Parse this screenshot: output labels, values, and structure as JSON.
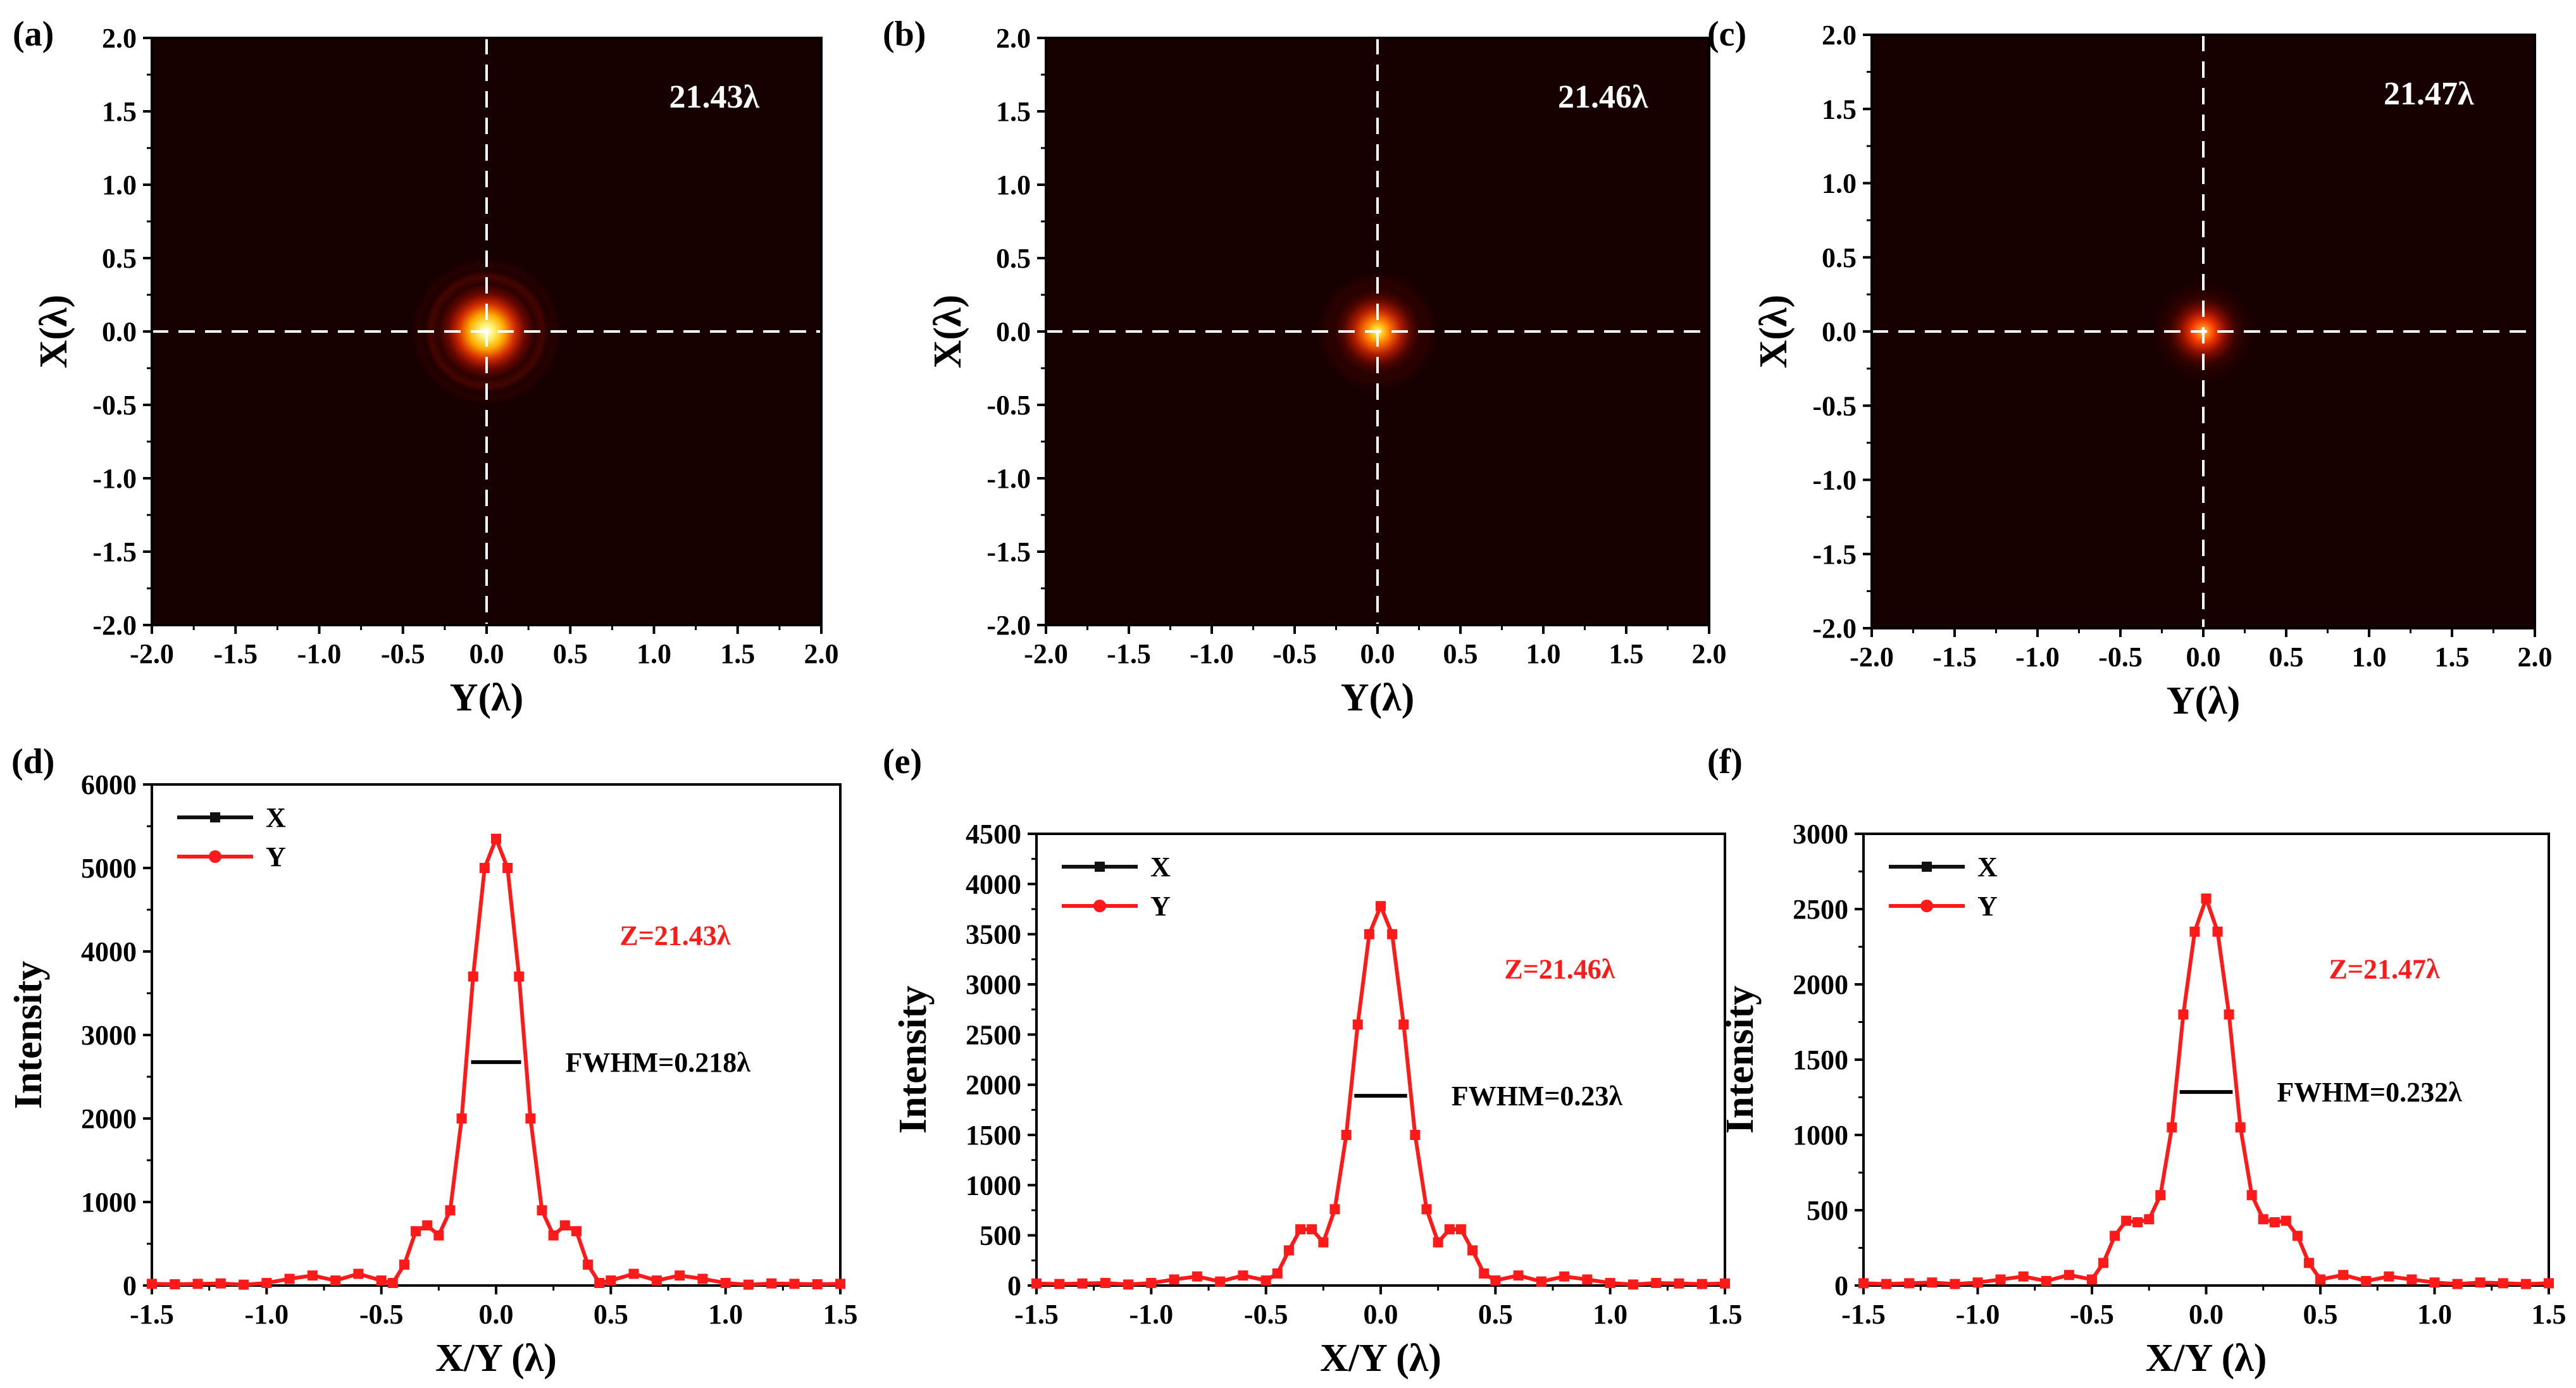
{
  "figure": {
    "heatmap_ticks": [
      "-2.0",
      "-1.5",
      "-1.0",
      "-0.5",
      "0.0",
      "0.5",
      "1.0",
      "1.5",
      "2.0"
    ],
    "profile_x_ticks": [
      "-1.5",
      "-1.0",
      "-0.5",
      "0.0",
      "0.5",
      "1.0",
      "1.5"
    ]
  },
  "chart_data": [
    {
      "panel": "(a)",
      "type": "heatmap",
      "xlabel": "Y(λ)",
      "ylabel": "X(λ)",
      "xlim": [
        -2.0,
        2.0
      ],
      "ylim": [
        -2.0,
        2.0
      ],
      "annotation": "21.43λ",
      "peak_brightness": 1.0,
      "spot_radius": 0.26,
      "crosshair": {
        "x": 0.0,
        "y": 0.0,
        "style": "dashed",
        "color": "#ffffff"
      },
      "colormap": "black-red-yellow-white"
    },
    {
      "panel": "(b)",
      "type": "heatmap",
      "xlabel": "Y(λ)",
      "ylabel": "X(λ)",
      "xlim": [
        -2.0,
        2.0
      ],
      "ylim": [
        -2.0,
        2.0
      ],
      "annotation": "21.46λ",
      "peak_brightness": 0.72,
      "spot_radius": 0.22,
      "crosshair": {
        "x": 0.0,
        "y": 0.0,
        "style": "dashed",
        "color": "#ffffff"
      },
      "colormap": "black-red-yellow-white"
    },
    {
      "panel": "(c)",
      "type": "heatmap",
      "xlabel": "Y(λ)",
      "ylabel": "X(λ)",
      "xlim": [
        -2.0,
        2.0
      ],
      "ylim": [
        -2.0,
        2.0
      ],
      "annotation": "21.47λ",
      "peak_brightness": 0.5,
      "spot_radius": 0.2,
      "crosshair": {
        "x": 0.0,
        "y": 0.0,
        "style": "dashed",
        "color": "#ffffff"
      },
      "colormap": "black-red-yellow-white"
    },
    {
      "panel": "(d)",
      "type": "line",
      "xlabel": "X/Y (λ)",
      "ylabel": "Intensity",
      "xlim": [
        -1.5,
        1.5
      ],
      "ylim": [
        0,
        6000
      ],
      "yticks": [
        0,
        1000,
        2000,
        3000,
        4000,
        5000,
        6000
      ],
      "legend": [
        "X",
        "Y"
      ],
      "legend_position": "top-left",
      "series_colors": {
        "X": "#111111",
        "Y": "#ff1a1a"
      },
      "z_label": "Z=21.43λ",
      "fwhm_label": "FWHM=0.218λ",
      "peak": 5350,
      "fwhm": 0.218,
      "x": [
        -1.5,
        -1.4,
        -1.3,
        -1.2,
        -1.1,
        -1.0,
        -0.9,
        -0.8,
        -0.7,
        -0.6,
        -0.5,
        -0.45,
        -0.4,
        -0.35,
        -0.3,
        -0.25,
        -0.2,
        -0.15,
        -0.1,
        -0.05,
        0.0,
        0.05,
        0.1,
        0.15,
        0.2,
        0.25,
        0.3,
        0.35,
        0.4,
        0.45,
        0.5,
        0.6,
        0.7,
        0.8,
        0.9,
        1.0,
        1.1,
        1.2,
        1.3,
        1.4,
        1.5
      ],
      "series": [
        {
          "name": "X",
          "values": [
            20,
            15,
            20,
            25,
            10,
            30,
            80,
            120,
            60,
            140,
            60,
            30,
            250,
            650,
            720,
            600,
            900,
            2000,
            3700,
            5000,
            5350,
            5000,
            3700,
            2000,
            900,
            600,
            720,
            650,
            250,
            30,
            60,
            140,
            60,
            120,
            80,
            30,
            10,
            25,
            20,
            15,
            20
          ]
        },
        {
          "name": "Y",
          "values": [
            20,
            15,
            20,
            25,
            10,
            30,
            80,
            120,
            60,
            140,
            60,
            30,
            250,
            650,
            720,
            600,
            900,
            2000,
            3700,
            5000,
            5350,
            5000,
            3700,
            2000,
            900,
            600,
            720,
            650,
            250,
            30,
            60,
            140,
            60,
            120,
            80,
            30,
            10,
            25,
            20,
            15,
            20
          ]
        }
      ]
    },
    {
      "panel": "(e)",
      "type": "line",
      "xlabel": "X/Y (λ)",
      "ylabel": "Intensity",
      "xlim": [
        -1.5,
        1.5
      ],
      "ylim": [
        0,
        4500
      ],
      "yticks": [
        0,
        500,
        1000,
        1500,
        2000,
        2500,
        3000,
        3500,
        4000,
        4500
      ],
      "legend": [
        "X",
        "Y"
      ],
      "legend_position": "top-left",
      "series_colors": {
        "X": "#111111",
        "Y": "#ff1a1a"
      },
      "z_label": "Z=21.46λ",
      "fwhm_label": "FWHM=0.23λ",
      "peak": 3780,
      "fwhm": 0.23,
      "x": [
        -1.5,
        -1.4,
        -1.3,
        -1.2,
        -1.1,
        -1.0,
        -0.9,
        -0.8,
        -0.7,
        -0.6,
        -0.5,
        -0.45,
        -0.4,
        -0.35,
        -0.3,
        -0.25,
        -0.2,
        -0.15,
        -0.1,
        -0.05,
        0.0,
        0.05,
        0.1,
        0.15,
        0.2,
        0.25,
        0.3,
        0.35,
        0.4,
        0.45,
        0.5,
        0.6,
        0.7,
        0.8,
        0.9,
        1.0,
        1.1,
        1.2,
        1.3,
        1.4,
        1.5
      ],
      "series": [
        {
          "name": "X",
          "values": [
            20,
            15,
            20,
            25,
            10,
            25,
            60,
            90,
            40,
            100,
            50,
            120,
            350,
            560,
            560,
            430,
            760,
            1500,
            2600,
            3500,
            3780,
            3500,
            2600,
            1500,
            760,
            430,
            560,
            560,
            350,
            120,
            50,
            100,
            40,
            90,
            60,
            25,
            10,
            25,
            20,
            15,
            20
          ]
        },
        {
          "name": "Y",
          "values": [
            20,
            15,
            20,
            25,
            10,
            25,
            60,
            90,
            40,
            100,
            50,
            120,
            350,
            560,
            560,
            430,
            760,
            1500,
            2600,
            3500,
            3780,
            3500,
            2600,
            1500,
            760,
            430,
            560,
            560,
            350,
            120,
            50,
            100,
            40,
            90,
            60,
            25,
            10,
            25,
            20,
            15,
            20
          ]
        }
      ]
    },
    {
      "panel": "(f)",
      "type": "line",
      "xlabel": "X/Y (λ)",
      "ylabel": "Intensity",
      "xlim": [
        -1.5,
        1.5
      ],
      "ylim": [
        0,
        3000
      ],
      "yticks": [
        0,
        500,
        1000,
        1500,
        2000,
        2500,
        3000
      ],
      "legend": [
        "X",
        "Y"
      ],
      "legend_position": "top-left",
      "series_colors": {
        "X": "#111111",
        "Y": "#ff1a1a"
      },
      "z_label": "Z=21.47λ",
      "fwhm_label": "FWHM=0.232λ",
      "peak": 2570,
      "fwhm": 0.232,
      "x": [
        -1.5,
        -1.4,
        -1.3,
        -1.2,
        -1.1,
        -1.0,
        -0.9,
        -0.8,
        -0.7,
        -0.6,
        -0.5,
        -0.45,
        -0.4,
        -0.35,
        -0.3,
        -0.25,
        -0.2,
        -0.15,
        -0.1,
        -0.05,
        0.0,
        0.05,
        0.1,
        0.15,
        0.2,
        0.25,
        0.3,
        0.35,
        0.4,
        0.45,
        0.5,
        0.6,
        0.7,
        0.8,
        0.9,
        1.0,
        1.1,
        1.2,
        1.3,
        1.4,
        1.5
      ],
      "series": [
        {
          "name": "X",
          "values": [
            15,
            10,
            15,
            20,
            10,
            20,
            40,
            60,
            30,
            70,
            40,
            150,
            330,
            430,
            420,
            440,
            600,
            1050,
            1800,
            2350,
            2570,
            2350,
            1800,
            1050,
            600,
            440,
            420,
            430,
            330,
            150,
            40,
            70,
            30,
            60,
            40,
            20,
            10,
            20,
            15,
            10,
            15
          ]
        },
        {
          "name": "Y",
          "values": [
            15,
            10,
            15,
            20,
            10,
            20,
            40,
            60,
            30,
            70,
            40,
            150,
            330,
            430,
            420,
            440,
            600,
            1050,
            1800,
            2350,
            2570,
            2350,
            1800,
            1050,
            600,
            440,
            420,
            430,
            330,
            150,
            40,
            70,
            30,
            60,
            40,
            20,
            10,
            20,
            15,
            10,
            15
          ]
        }
      ]
    }
  ]
}
